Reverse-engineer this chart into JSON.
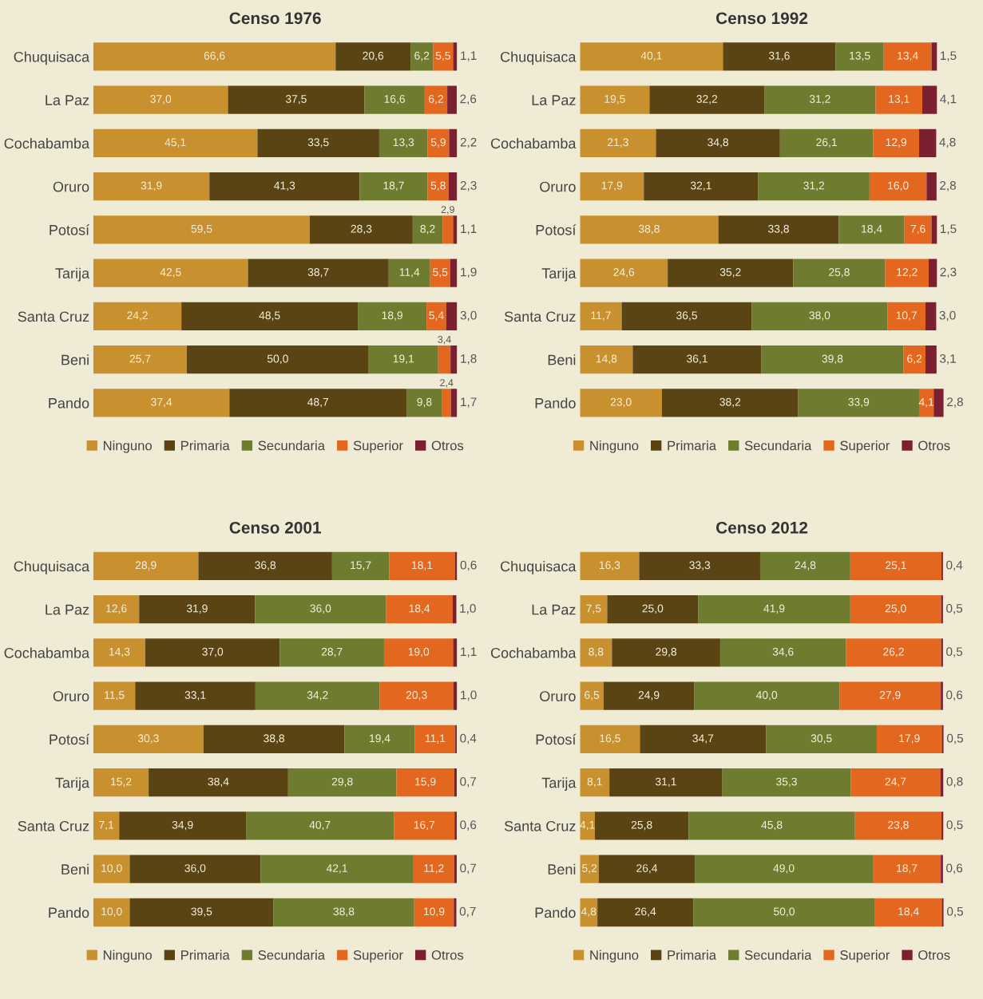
{
  "chart_data": [
    {
      "type": "bar",
      "orientation": "horizontal",
      "stacked": true,
      "title": "Censo 1976",
      "legend": "bottom",
      "categories": [
        "Chuquisaca",
        "La Paz",
        "Cochabamba",
        "Oruro",
        "Potosí",
        "Tarija",
        "Santa Cruz",
        "Beni",
        "Pando"
      ],
      "series": [
        {
          "name": "Ninguno",
          "color": "#c8902e",
          "values": [
            66.6,
            37.0,
            45.1,
            31.9,
            59.5,
            42.5,
            24.2,
            25.7,
            37.4
          ],
          "value_labels": [
            "66,6",
            "37,0",
            "45,1",
            "31,9",
            "59,5",
            "42,5",
            "24,2",
            "25,7",
            "37,4"
          ]
        },
        {
          "name": "Primaria",
          "color": "#5a4413",
          "values": [
            20.6,
            37.5,
            33.5,
            41.3,
            28.3,
            38.7,
            48.5,
            50.0,
            48.7
          ],
          "value_labels": [
            "20,6",
            "37,5",
            "33,5",
            "41,3",
            "28,3",
            "38,7",
            "48,5",
            "50,0",
            "48,7"
          ]
        },
        {
          "name": "Secundaria",
          "color": "#6f7b2e",
          "values": [
            6.2,
            16.6,
            13.3,
            18.7,
            8.2,
            11.4,
            18.9,
            19.1,
            9.8
          ],
          "value_labels": [
            "6,2",
            "16,6",
            "13,3",
            "18,7",
            "8,2",
            "11,4",
            "18,9",
            "19,1",
            "9,8"
          ]
        },
        {
          "name": "Superior",
          "color": "#e4671f",
          "values": [
            5.5,
            6.2,
            5.9,
            5.8,
            2.9,
            5.5,
            5.4,
            3.4,
            2.4
          ],
          "value_labels": [
            "5,5",
            "6,2",
            "5,9",
            "5,8",
            "2,9",
            "5,5",
            "5,4",
            "3,4",
            "2,4"
          ]
        },
        {
          "name": "Otros",
          "color": "#7a2030",
          "values": [
            1.1,
            2.6,
            2.2,
            2.3,
            1.1,
            1.9,
            3.0,
            1.8,
            1.7
          ],
          "value_labels": [
            "1,1",
            "2,6",
            "2,2",
            "2,3",
            "1,1",
            "1,9",
            "3,0",
            "1,8",
            "1,7"
          ]
        }
      ]
    },
    {
      "type": "bar",
      "orientation": "horizontal",
      "stacked": true,
      "title": "Censo 1992",
      "legend": "bottom",
      "categories": [
        "Chuquisaca",
        "La Paz",
        "Cochabamba",
        "Oruro",
        "Potosí",
        "Tarija",
        "Santa Cruz",
        "Beni",
        "Pando"
      ],
      "series": [
        {
          "name": "Ninguno",
          "color": "#c8902e",
          "values": [
            40.1,
            19.5,
            21.3,
            17.9,
            38.8,
            24.6,
            11.7,
            14.8,
            23.0
          ],
          "value_labels": [
            "40,1",
            "19,5",
            "21,3",
            "17,9",
            "38,8",
            "24,6",
            "11,7",
            "14,8",
            "23,0"
          ]
        },
        {
          "name": "Primaria",
          "color": "#5a4413",
          "values": [
            31.6,
            32.2,
            34.8,
            32.1,
            33.8,
            35.2,
            36.5,
            36.1,
            38.2
          ],
          "value_labels": [
            "31,6",
            "32,2",
            "34,8",
            "32,1",
            "33,8",
            "35,2",
            "36,5",
            "36,1",
            "38,2"
          ]
        },
        {
          "name": "Secundaria",
          "color": "#6f7b2e",
          "values": [
            13.5,
            31.2,
            26.1,
            31.2,
            18.4,
            25.8,
            38.0,
            39.8,
            33.9
          ],
          "value_labels": [
            "13,5",
            "31,2",
            "26,1",
            "31,2",
            "18,4",
            "25,8",
            "38,0",
            "39,8",
            "33,9"
          ]
        },
        {
          "name": "Superior",
          "color": "#e4671f",
          "values": [
            13.4,
            13.1,
            12.9,
            16.0,
            7.6,
            12.2,
            10.7,
            6.2,
            4.1
          ],
          "value_labels": [
            "13,4",
            "13,1",
            "12,9",
            "16,0",
            "7,6",
            "12,2",
            "10,7",
            "6,2",
            "4,1"
          ]
        },
        {
          "name": "Otros",
          "color": "#7a2030",
          "values": [
            1.5,
            4.1,
            4.8,
            2.8,
            1.5,
            2.3,
            3.0,
            3.1,
            2.8
          ],
          "value_labels": [
            "1,5",
            "4,1",
            "4,8",
            "2,8",
            "1,5",
            "2,3",
            "3,0",
            "3,1",
            "2,8"
          ]
        }
      ]
    },
    {
      "type": "bar",
      "orientation": "horizontal",
      "stacked": true,
      "title": "Censo 2001",
      "legend": "bottom",
      "categories": [
        "Chuquisaca",
        "La Paz",
        "Cochabamba",
        "Oruro",
        "Potosí",
        "Tarija",
        "Santa Cruz",
        "Beni",
        "Pando"
      ],
      "series": [
        {
          "name": "Ninguno",
          "color": "#c8902e",
          "values": [
            28.9,
            12.6,
            14.3,
            11.5,
            30.3,
            15.2,
            7.1,
            10.0,
            10.0
          ],
          "value_labels": [
            "28,9",
            "12,6",
            "14,3",
            "11,5",
            "30,3",
            "15,2",
            "7,1",
            "10,0",
            "10,0"
          ]
        },
        {
          "name": "Primaria",
          "color": "#5a4413",
          "values": [
            36.8,
            31.9,
            37.0,
            33.1,
            38.8,
            38.4,
            34.9,
            36.0,
            39.5
          ],
          "value_labels": [
            "36,8",
            "31,9",
            "37,0",
            "33,1",
            "38,8",
            "38,4",
            "34,9",
            "36,0",
            "39,5"
          ]
        },
        {
          "name": "Secundaria",
          "color": "#6f7b2e",
          "values": [
            15.7,
            36.0,
            28.7,
            34.2,
            19.4,
            29.8,
            40.7,
            42.1,
            38.8
          ],
          "value_labels": [
            "15,7",
            "36,0",
            "28,7",
            "34,2",
            "19,4",
            "29,8",
            "40,7",
            "42,1",
            "38,8"
          ]
        },
        {
          "name": "Superior",
          "color": "#e4671f",
          "values": [
            18.1,
            18.4,
            19.0,
            20.3,
            11.1,
            15.9,
            16.7,
            11.2,
            10.9
          ],
          "value_labels": [
            "18,1",
            "18,4",
            "19,0",
            "20,3",
            "11,1",
            "15,9",
            "16,7",
            "11,2",
            "10,9"
          ]
        },
        {
          "name": "Otros",
          "color": "#7a2030",
          "values": [
            0.6,
            1.0,
            1.1,
            1.0,
            0.4,
            0.7,
            0.6,
            0.7,
            0.7
          ],
          "value_labels": [
            "0,6",
            "1,0",
            "1,1",
            "1,0",
            "0,4",
            "0,7",
            "0,6",
            "0,7",
            "0,7"
          ]
        }
      ]
    },
    {
      "type": "bar",
      "orientation": "horizontal",
      "stacked": true,
      "title": "Censo 2012",
      "legend": "bottom",
      "categories": [
        "Chuquisaca",
        "La Paz",
        "Cochabamba",
        "Oruro",
        "Potosí",
        "Tarija",
        "Santa Cruz",
        "Beni",
        "Pando"
      ],
      "series": [
        {
          "name": "Ninguno",
          "color": "#c8902e",
          "values": [
            16.3,
            7.5,
            8.8,
            6.5,
            16.5,
            8.1,
            4.1,
            5.2,
            4.8
          ],
          "value_labels": [
            "16,3",
            "7,5",
            "8,8",
            "6,5",
            "16,5",
            "8,1",
            "4,1",
            "5,2",
            "4,8"
          ]
        },
        {
          "name": "Primaria",
          "color": "#5a4413",
          "values": [
            33.3,
            25.0,
            29.8,
            24.9,
            34.7,
            31.1,
            25.8,
            26.4,
            26.4
          ],
          "value_labels": [
            "33,3",
            "25,0",
            "29,8",
            "24,9",
            "34,7",
            "31,1",
            "25,8",
            "26,4",
            "26,4"
          ]
        },
        {
          "name": "Secundaria",
          "color": "#6f7b2e",
          "values": [
            24.8,
            41.9,
            34.6,
            40.0,
            30.5,
            35.3,
            45.8,
            49.0,
            50.0
          ],
          "value_labels": [
            "24,8",
            "41,9",
            "34,6",
            "40,0",
            "30,5",
            "35,3",
            "45,8",
            "49,0",
            "50,0"
          ]
        },
        {
          "name": "Superior",
          "color": "#e4671f",
          "values": [
            25.1,
            25.0,
            26.2,
            27.9,
            17.9,
            24.7,
            23.8,
            18.7,
            18.4
          ],
          "value_labels": [
            "25,1",
            "25,0",
            "26,2",
            "27,9",
            "17,9",
            "24,7",
            "23,8",
            "18,7",
            "18,4"
          ]
        },
        {
          "name": "Otros",
          "color": "#7a2030",
          "values": [
            0.4,
            0.5,
            0.5,
            0.6,
            0.5,
            0.8,
            0.5,
            0.6,
            0.5
          ],
          "value_labels": [
            "0,4",
            "0,5",
            "0,5",
            "0,6",
            "0,5",
            "0,8",
            "0,5",
            "0,6",
            "0,5"
          ]
        }
      ]
    }
  ]
}
